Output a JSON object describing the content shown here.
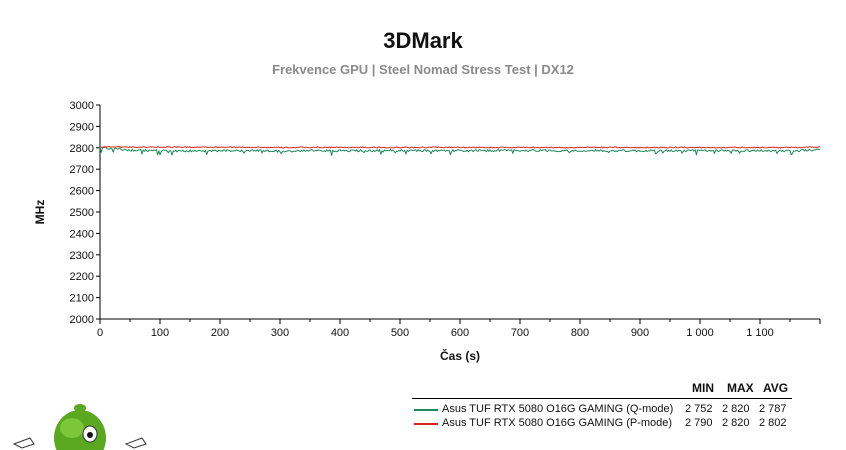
{
  "chart_data": {
    "type": "line",
    "title": "3DMark",
    "subtitle": "Frekvence GPU | Steel Nomad Stress Test | DX12",
    "xlabel": "Čas (s)",
    "ylabel": "MHz",
    "xlim": [
      0,
      1200
    ],
    "ylim": [
      2000,
      3000
    ],
    "xticks": [
      0,
      100,
      200,
      300,
      400,
      500,
      600,
      700,
      800,
      900,
      1000,
      1100
    ],
    "xtick_labels": [
      "0",
      "100",
      "200",
      "300",
      "400",
      "500",
      "600",
      "700",
      "800",
      "900",
      "1 000",
      "1 100"
    ],
    "yticks": [
      2000,
      2100,
      2200,
      2300,
      2400,
      2500,
      2600,
      2700,
      2800,
      2900,
      3000
    ],
    "ytick_labels": [
      "2000",
      "2100",
      "2200",
      "2300",
      "2400",
      "2500",
      "2600",
      "2700",
      "2800",
      "2900",
      "3000"
    ],
    "grid": false,
    "legend_position": "bottom-right",
    "legend_headers": [
      "MIN",
      "MAX",
      "AVG"
    ],
    "series": [
      {
        "name": "Asus TUF RTX 5080 O16G GAMING (Q-mode)",
        "color": "#1e8a5a",
        "min": "2 752",
        "max": "2 820",
        "avg": "2 787",
        "x": [
          0,
          60,
          120,
          180,
          240,
          300,
          360,
          420,
          480,
          540,
          600,
          660,
          720,
          780,
          840,
          900,
          960,
          1020,
          1080,
          1140,
          1200
        ],
        "values": [
          2800,
          2788,
          2786,
          2785,
          2788,
          2784,
          2787,
          2786,
          2788,
          2787,
          2786,
          2787,
          2788,
          2786,
          2787,
          2786,
          2787,
          2786,
          2787,
          2786,
          2790
        ]
      },
      {
        "name": "Asus TUF RTX 5080 O16G GAMING (P-mode)",
        "color": "#d9261c",
        "min": "2 790",
        "max": "2 820",
        "avg": "2 802",
        "x": [
          0,
          60,
          120,
          180,
          240,
          300,
          360,
          420,
          480,
          540,
          600,
          660,
          720,
          780,
          840,
          900,
          960,
          1020,
          1080,
          1140,
          1200
        ],
        "values": [
          2805,
          2803,
          2804,
          2802,
          2803,
          2801,
          2802,
          2802,
          2801,
          2802,
          2802,
          2801,
          2802,
          2801,
          2802,
          2801,
          2802,
          2801,
          2802,
          2801,
          2804
        ]
      }
    ]
  }
}
